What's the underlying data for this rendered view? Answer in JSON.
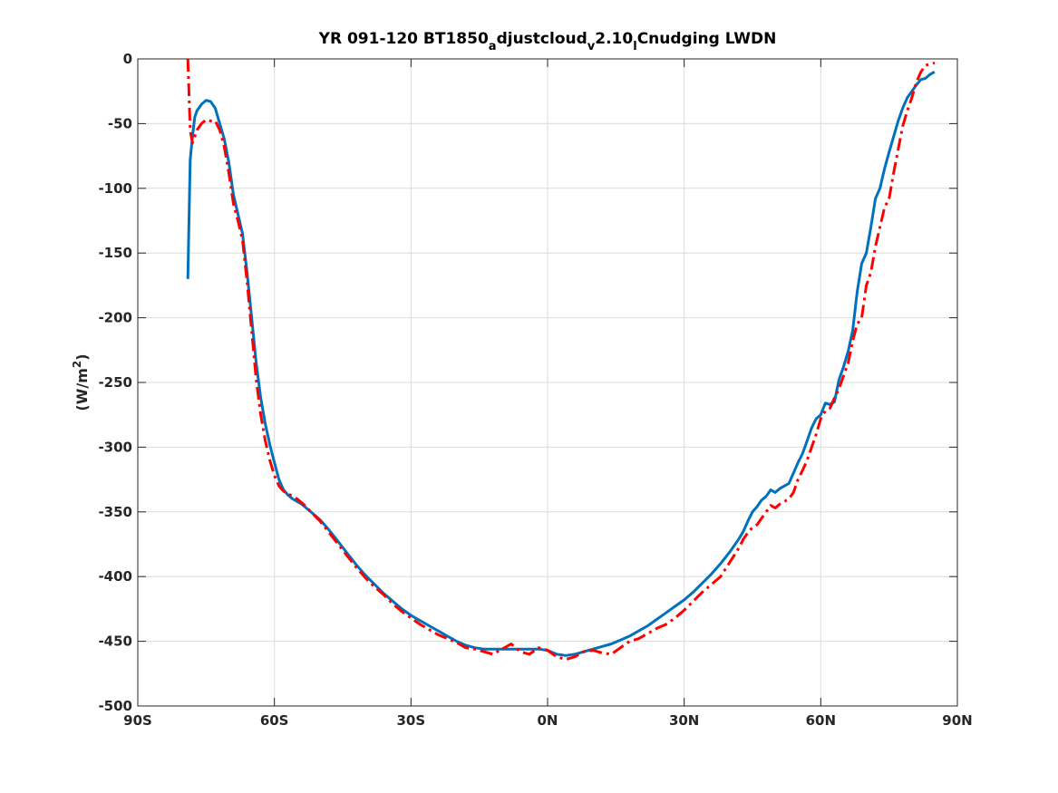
{
  "chart_data": {
    "type": "line",
    "title_parts": [
      "YR 091-120 BT1850",
      "a",
      "djustcloud",
      "v",
      "2.10",
      "l",
      "Cnudging LWDN"
    ],
    "xlabel": "",
    "ylabel_parts": [
      "(W/m",
      "2",
      ")"
    ],
    "xlim": [
      -90,
      90
    ],
    "ylim": [
      -500,
      0
    ],
    "xticks": [
      -90,
      -60,
      -30,
      0,
      30,
      60,
      90
    ],
    "xtick_labels": [
      "90S",
      "60S",
      "30S",
      "0N",
      "30N",
      "60N",
      "90N"
    ],
    "yticks": [
      0,
      -50,
      -100,
      -150,
      -200,
      -250,
      -300,
      -350,
      -400,
      -450,
      -500
    ],
    "ytick_labels": [
      "0",
      "-50",
      "-100",
      "-150",
      "-200",
      "-250",
      "-300",
      "-350",
      "-400",
      "-450",
      "-500"
    ],
    "grid": true,
    "series": [
      {
        "color": "#0072BD",
        "style": "solid",
        "x": [
          -79,
          -78.5,
          -78,
          -77.5,
          -77,
          -76,
          -75,
          -74,
          -73,
          -72,
          -71,
          -70,
          -69,
          -68,
          -67,
          -66,
          -65,
          -64,
          -63,
          -62,
          -61,
          -60,
          -59,
          -58,
          -57,
          -56,
          -55,
          -54,
          -53,
          -52,
          -50,
          -48,
          -46,
          -44,
          -42,
          -40,
          -38,
          -36,
          -34,
          -32,
          -30,
          -28,
          -26,
          -24,
          -22,
          -20,
          -18,
          -16,
          -14,
          -12,
          -10,
          -8,
          -6,
          -4,
          -2,
          0,
          2,
          4,
          6,
          8,
          10,
          12,
          14,
          16,
          18,
          20,
          22,
          24,
          26,
          28,
          30,
          32,
          34,
          36,
          38,
          40,
          42,
          43,
          44,
          45,
          46,
          47,
          48,
          49,
          50,
          51,
          52,
          53,
          54,
          55,
          56,
          57,
          58,
          59,
          60,
          61,
          62,
          63,
          64,
          65,
          66,
          67,
          68,
          69,
          70,
          71,
          72,
          73,
          74,
          75,
          76,
          77,
          78,
          79,
          80,
          81,
          82,
          83,
          84,
          85
        ],
        "y": [
          -170,
          -78,
          -60,
          -45,
          -40,
          -35,
          -32,
          -33,
          -38,
          -50,
          -62,
          -80,
          -105,
          -120,
          -135,
          -165,
          -200,
          -235,
          -262,
          -282,
          -298,
          -312,
          -325,
          -333,
          -337,
          -340,
          -342,
          -344,
          -347,
          -350,
          -356,
          -364,
          -373,
          -382,
          -391,
          -399,
          -406,
          -413,
          -419,
          -425,
          -430,
          -434,
          -438,
          -442,
          -446,
          -450,
          -453,
          -455,
          -456,
          -456,
          -456,
          -456,
          -456,
          -456,
          -456,
          -457,
          -460,
          -461,
          -460,
          -458,
          -456,
          -454,
          -452,
          -449,
          -446,
          -442,
          -438,
          -433,
          -428,
          -423,
          -418,
          -412,
          -405,
          -398,
          -390,
          -381,
          -371,
          -365,
          -357,
          -350,
          -346,
          -341,
          -338,
          -333,
          -335,
          -332,
          -330,
          -328,
          -320,
          -312,
          -305,
          -295,
          -285,
          -278,
          -275,
          -266,
          -267,
          -265,
          -248,
          -238,
          -226,
          -210,
          -180,
          -158,
          -150,
          -130,
          -108,
          -100,
          -85,
          -72,
          -60,
          -48,
          -38,
          -30,
          -25,
          -20,
          -16,
          -15,
          -12,
          -10
        ]
      },
      {
        "color": "#FF0000",
        "style": "dashdot",
        "x": [
          -79,
          -78.5,
          -78,
          -77.5,
          -77,
          -76,
          -75,
          -74,
          -73,
          -72,
          -71,
          -70,
          -69,
          -68,
          -67,
          -66,
          -65,
          -64,
          -63,
          -62,
          -61,
          -60,
          -59,
          -58,
          -57,
          -56,
          -55,
          -54,
          -53,
          -52,
          -50,
          -48,
          -46,
          -44,
          -42,
          -40,
          -38,
          -36,
          -34,
          -32,
          -30,
          -28,
          -26,
          -24,
          -22,
          -20,
          -18,
          -16,
          -14,
          -12,
          -10,
          -8,
          -6,
          -4,
          -2,
          0,
          2,
          4,
          6,
          8,
          10,
          12,
          14,
          16,
          18,
          20,
          22,
          24,
          26,
          28,
          30,
          32,
          34,
          36,
          38,
          40,
          42,
          43,
          44,
          45,
          46,
          47,
          48,
          49,
          50,
          51,
          52,
          53,
          54,
          55,
          56,
          57,
          58,
          59,
          60,
          61,
          62,
          63,
          64,
          65,
          66,
          67,
          68,
          69,
          70,
          71,
          72,
          73,
          74,
          75,
          76,
          77,
          78,
          79,
          80,
          81,
          82,
          83,
          84,
          85
        ],
        "y": [
          0,
          -55,
          -65,
          -60,
          -55,
          -50,
          -47,
          -48,
          -48,
          -55,
          -68,
          -88,
          -112,
          -125,
          -140,
          -172,
          -210,
          -248,
          -275,
          -295,
          -310,
          -322,
          -330,
          -334,
          -336,
          -338,
          -340,
          -343,
          -346,
          -350,
          -357,
          -366,
          -375,
          -384,
          -393,
          -401,
          -408,
          -414,
          -421,
          -427,
          -432,
          -437,
          -441,
          -445,
          -448,
          -451,
          -455,
          -456,
          -458,
          -460,
          -456,
          -452,
          -458,
          -460,
          -455,
          -457,
          -462,
          -464,
          -462,
          -458,
          -457,
          -459,
          -460,
          -455,
          -450,
          -448,
          -444,
          -440,
          -437,
          -432,
          -426,
          -419,
          -412,
          -406,
          -400,
          -389,
          -378,
          -371,
          -366,
          -362,
          -360,
          -355,
          -350,
          -345,
          -347,
          -344,
          -342,
          -340,
          -335,
          -325,
          -318,
          -310,
          -300,
          -290,
          -278,
          -272,
          -270,
          -262,
          -255,
          -245,
          -235,
          -218,
          -205,
          -200,
          -175,
          -165,
          -145,
          -130,
          -115,
          -108,
          -88,
          -70,
          -52,
          -40,
          -30,
          -18,
          -10,
          -5,
          -4,
          -3
        ]
      }
    ]
  }
}
